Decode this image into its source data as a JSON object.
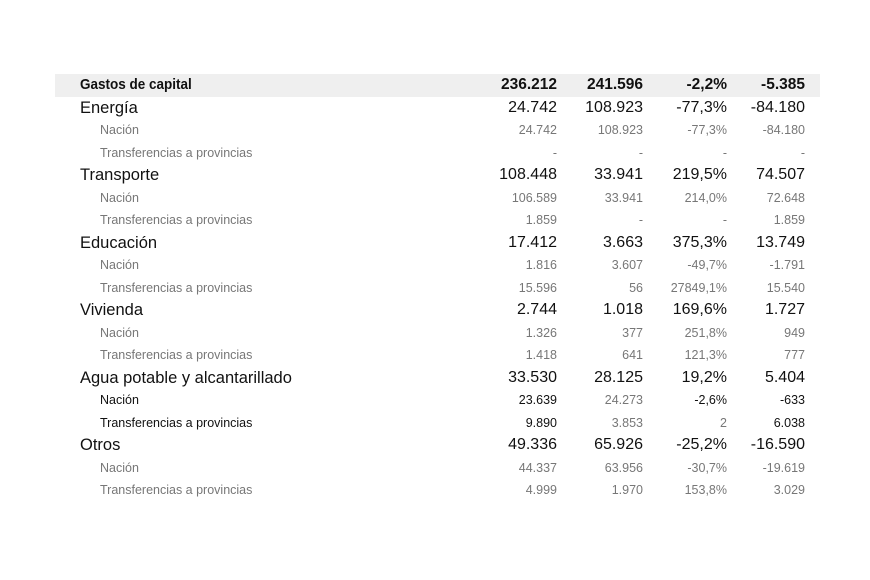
{
  "table": {
    "rows": [
      {
        "label": "Gastos de capital",
        "level": "total",
        "values": [
          "236.212",
          "241.596",
          "-2,2%",
          "-5.385"
        ]
      },
      {
        "label": "Energía",
        "level": "cat",
        "values": [
          "24.742",
          "108.923",
          "-77,3%",
          "-84.180"
        ]
      },
      {
        "label": "Nación",
        "level": "sub",
        "values": [
          "24.742",
          "108.923",
          "-77,3%",
          "-84.180"
        ]
      },
      {
        "label": "Transferencias a provincias",
        "level": "sub",
        "values": [
          "-",
          "-",
          "-",
          "-"
        ]
      },
      {
        "label": "Transporte",
        "level": "cat",
        "values": [
          "108.448",
          "33.941",
          "219,5%",
          "74.507"
        ]
      },
      {
        "label": "Nación",
        "level": "sub",
        "values": [
          "106.589",
          "33.941",
          "214,0%",
          "72.648"
        ]
      },
      {
        "label": "Transferencias a provincias",
        "level": "sub",
        "values": [
          "1.859",
          "-",
          "-",
          "1.859"
        ]
      },
      {
        "label": "Educación",
        "level": "cat",
        "values": [
          "17.412",
          "3.663",
          "375,3%",
          "13.749"
        ]
      },
      {
        "label": "Nación",
        "level": "sub",
        "values": [
          "1.816",
          "3.607",
          "-49,7%",
          "-1.791"
        ]
      },
      {
        "label": "Transferencias a provincias",
        "level": "sub",
        "values": [
          "15.596",
          "56",
          "27849,1%",
          "15.540"
        ]
      },
      {
        "label": "Vivienda",
        "level": "cat",
        "values": [
          "2.744",
          "1.018",
          "169,6%",
          "1.727"
        ]
      },
      {
        "label": "Nación",
        "level": "sub",
        "values": [
          "1.326",
          "377",
          "251,8%",
          "949"
        ]
      },
      {
        "label": "Transferencias a provincias",
        "level": "sub",
        "values": [
          "1.418",
          "641",
          "121,3%",
          "777"
        ]
      },
      {
        "label": "Agua potable y alcantarillado",
        "level": "cat",
        "values": [
          "33.530",
          "28.125",
          "19,2%",
          "5.404"
        ]
      },
      {
        "label": "Nación",
        "level": "sub",
        "values": [
          "23.639",
          "24.273",
          "-2,6%",
          "-633"
        ],
        "dark": [
          true,
          true,
          false,
          true,
          true
        ]
      },
      {
        "label": "Transferencias a provincias",
        "level": "sub",
        "values": [
          "9.890",
          "3.853",
          "2",
          "6.038"
        ],
        "dark": [
          true,
          true,
          false,
          false,
          true
        ]
      },
      {
        "label": "Otros",
        "level": "cat",
        "values": [
          "49.336",
          "65.926",
          "-25,2%",
          "-16.590"
        ]
      },
      {
        "label": "Nación",
        "level": "sub",
        "values": [
          "44.337",
          "63.956",
          "-30,7%",
          "-19.619"
        ]
      },
      {
        "label": "Transferencias a provincias",
        "level": "sub",
        "values": [
          "4.999",
          "1.970",
          "153,8%",
          "3.029"
        ]
      }
    ]
  }
}
